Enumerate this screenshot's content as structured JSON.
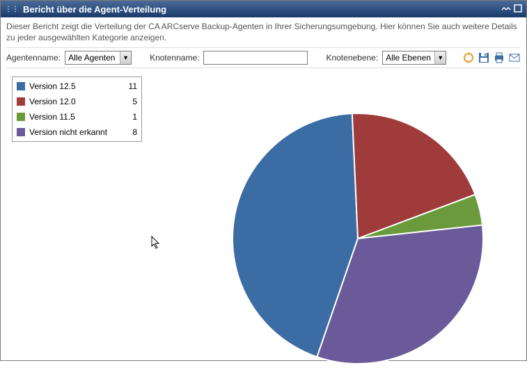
{
  "window": {
    "title": "Bericht über die Agent-Verteilung"
  },
  "description": "Dieser Bericht zeigt die Verteilung der CA ARCserve Backup-Agenten in Ihrer Sicherungsumgebung. Hier können Sie auch weitere Details zu jeder ausgewählten Kategorie anzeigen.",
  "filters": {
    "agent_name_label": "Agentenname:",
    "agent_name_value": "Alle Agenten",
    "node_name_label": "Knotenname:",
    "node_name_value": "",
    "node_level_label": "Knotenebene:",
    "node_level_value": "Alle Ebenen"
  },
  "chart": {
    "type": "pie",
    "series": [
      {
        "label": "Version 12.5",
        "value": 11,
        "color": "#3b6ca3"
      },
      {
        "label": "Version 12.0",
        "value": 5,
        "color": "#a03b3b"
      },
      {
        "label": "Version 11.5",
        "value": 1,
        "color": "#6a9a3b"
      },
      {
        "label": "Version nicht erkannt",
        "value": 8,
        "color": "#6a5a9a"
      }
    ],
    "radius": 180,
    "stroke": "#ffffff",
    "stroke_width": 2,
    "start_angle_deg": 109,
    "background": "#ffffff"
  },
  "icons": {
    "refresh": "↻",
    "save": "💾",
    "print": "🖶",
    "mail": "✉"
  }
}
